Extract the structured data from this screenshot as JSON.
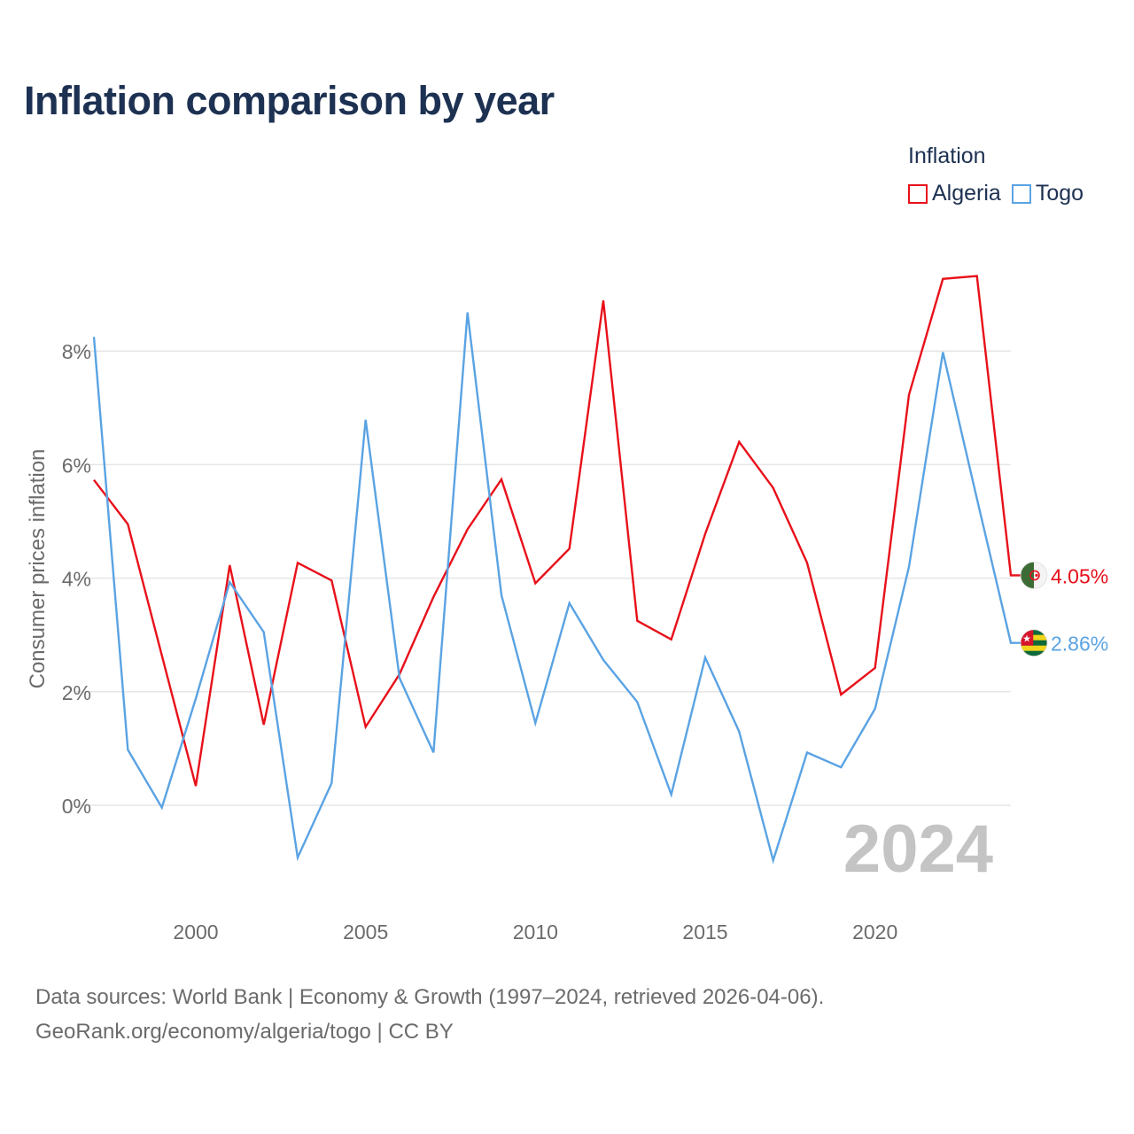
{
  "title": "Inflation comparison by year",
  "legend": {
    "title": "Inflation",
    "items": [
      {
        "label": "Algeria",
        "color": "#e8101a"
      },
      {
        "label": "Togo",
        "color": "#5aa3e3"
      }
    ]
  },
  "year_watermark": "2024",
  "footer": {
    "line1": "Data sources: World Bank | Economy & Growth (1997–2024, retrieved 2026-04-06).",
    "line2": "GeoRank.org/economy/algeria/togo | CC BY"
  },
  "chart_data": {
    "type": "line",
    "title": "Inflation comparison by year",
    "xlabel": "",
    "ylabel": "Consumer prices inflation",
    "xlim": [
      1997,
      2024
    ],
    "ylim": [
      -1.5,
      10
    ],
    "x_ticks": [
      2000,
      2005,
      2010,
      2015,
      2020
    ],
    "y_ticks": [
      0,
      2,
      4,
      6,
      8
    ],
    "y_tick_labels": [
      "0%",
      "2%",
      "4%",
      "6%",
      "8%"
    ],
    "x": [
      1997,
      1998,
      1999,
      2000,
      2001,
      2002,
      2003,
      2004,
      2005,
      2006,
      2007,
      2008,
      2009,
      2010,
      2011,
      2012,
      2013,
      2014,
      2015,
      2016,
      2017,
      2018,
      2019,
      2020,
      2021,
      2022,
      2023,
      2024
    ],
    "series": [
      {
        "name": "Algeria",
        "color": "#e8101a",
        "end_label": "4.05%",
        "values": [
          5.73,
          4.95,
          2.64,
          0.34,
          4.23,
          1.42,
          4.27,
          3.96,
          1.38,
          2.31,
          3.67,
          4.86,
          5.74,
          3.91,
          4.52,
          8.89,
          3.25,
          2.92,
          4.78,
          6.4,
          5.59,
          4.27,
          1.95,
          2.42,
          7.23,
          9.27,
          9.32,
          4.05
        ]
      },
      {
        "name": "Togo",
        "color": "#5aa3e3",
        "end_label": "2.86%",
        "values": [
          8.25,
          0.98,
          -0.04,
          1.88,
          3.93,
          3.05,
          -0.92,
          0.39,
          6.79,
          2.24,
          0.93,
          8.68,
          3.7,
          1.45,
          3.56,
          2.56,
          1.82,
          0.19,
          2.6,
          1.3,
          -0.97,
          0.93,
          0.67,
          1.7,
          4.2,
          7.98,
          5.4,
          2.86
        ]
      }
    ]
  }
}
